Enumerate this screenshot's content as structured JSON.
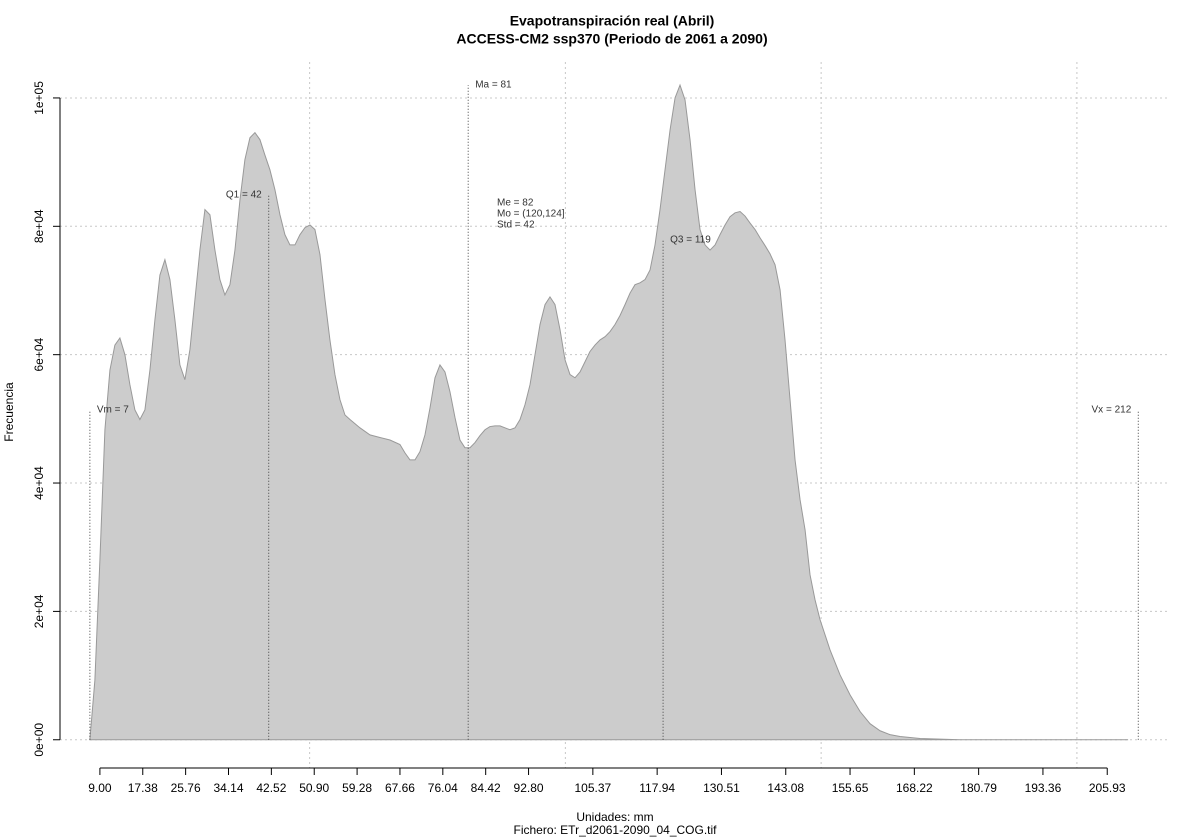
{
  "chart_data": {
    "type": "area",
    "title": "Evapotranspiración real (Abril)",
    "subtitle": "ACCESS-CM2 ssp370 (Periodo de 2061 a 2090)",
    "x_label": "Unidades: mm",
    "caption": "Fichero: ETr_d2061-2090_04_COG.tif",
    "y_label": "Frecuencia",
    "color": "#cccccc",
    "line_color": "#999999",
    "grid": true,
    "xlim": [
      1.2,
      218.2
    ],
    "ylim": [
      -4400,
      105600
    ],
    "xgrid": [
      50,
      100,
      150,
      200
    ],
    "xticks": [
      {
        "value": 9,
        "label": "9.00"
      },
      17.38,
      25.76,
      34.14,
      42.52,
      {
        "value": 50.9,
        "label": "50.90"
      },
      59.28,
      67.66,
      76.04,
      84.42,
      {
        "value": 92.8,
        "label": "92.80"
      },
      105.37,
      117.94,
      130.51,
      143.08,
      155.65,
      168.22,
      180.79,
      193.36,
      205.93
    ],
    "yticks": [
      {
        "value": 0,
        "label": "0e+00"
      },
      {
        "value": 20000,
        "label": "2e+04"
      },
      {
        "value": 40000,
        "label": "4e+04"
      },
      {
        "value": 60000,
        "label": "6e+04"
      },
      {
        "value": 80000,
        "label": "8e+04"
      },
      {
        "value": 100000,
        "label": "1e+05"
      }
    ],
    "x": [
      7.04,
      8.02,
      9.0,
      9.98,
      10.96,
      11.93,
      12.91,
      13.89,
      14.87,
      15.84,
      16.82,
      17.8,
      18.78,
      19.75,
      20.73,
      21.71,
      22.69,
      23.67,
      24.64,
      25.62,
      26.6,
      27.58,
      28.55,
      29.53,
      30.51,
      31.49,
      32.46,
      33.44,
      34.42,
      35.4,
      36.38,
      37.35,
      38.33,
      39.31,
      40.29,
      41.26,
      42.24,
      43.22,
      44.2,
      45.17,
      46.15,
      47.13,
      48.11,
      49.09,
      50.06,
      51.04,
      52.02,
      53.0,
      53.97,
      54.95,
      55.93,
      56.91,
      57.89,
      59.84,
      61.8,
      63.75,
      65.71,
      67.66,
      68.64,
      69.62,
      70.6,
      71.57,
      72.55,
      73.53,
      74.51,
      75.48,
      76.46,
      77.44,
      78.42,
      79.39,
      80.37,
      81.35,
      82.33,
      83.31,
      84.28,
      85.26,
      86.24,
      87.22,
      88.19,
      89.17,
      90.15,
      91.13,
      92.1,
      93.08,
      94.06,
      95.04,
      96.02,
      96.99,
      97.97,
      98.95,
      99.93,
      100.9,
      101.88,
      102.86,
      103.84,
      104.81,
      105.79,
      106.77,
      107.75,
      108.73,
      109.7,
      110.68,
      111.66,
      112.64,
      113.61,
      114.59,
      115.57,
      116.55,
      117.52,
      118.5,
      119.48,
      120.46,
      121.44,
      122.41,
      123.39,
      124.37,
      125.35,
      126.32,
      127.3,
      128.28,
      129.26,
      130.23,
      131.21,
      132.19,
      133.17,
      134.15,
      135.12,
      136.1,
      137.08,
      138.06,
      139.03,
      140.01,
      140.99,
      141.97,
      142.94,
      143.92,
      144.9,
      145.88,
      146.86,
      147.83,
      148.81,
      149.79,
      151.74,
      153.7,
      155.65,
      157.61,
      159.56,
      161.52,
      163.47,
      165.43,
      169.34,
      177.16,
      184.99,
      210.01
    ],
    "values": [
      0,
      9300,
      28000,
      48300,
      57600,
      61500,
      62600,
      60000,
      55300,
      51400,
      49900,
      51400,
      57600,
      65400,
      72400,
      74800,
      71700,
      65400,
      58400,
      56100,
      60800,
      68600,
      76300,
      82600,
      81800,
      76300,
      71700,
      69300,
      70900,
      76300,
      84100,
      90400,
      93800,
      94600,
      93500,
      91100,
      88800,
      85700,
      81800,
      78700,
      77100,
      77100,
      78700,
      79800,
      80200,
      79500,
      75600,
      68600,
      62300,
      56900,
      53000,
      50600,
      49900,
      48600,
      47500,
      47100,
      46700,
      46000,
      44700,
      43600,
      43600,
      44900,
      47500,
      51700,
      56400,
      58400,
      57300,
      54200,
      50200,
      46700,
      45500,
      45500,
      46300,
      47400,
      48300,
      48800,
      48900,
      48900,
      48600,
      48300,
      48600,
      49900,
      52200,
      55300,
      60000,
      64700,
      67800,
      69000,
      67800,
      63900,
      59200,
      56900,
      56400,
      57300,
      58900,
      60500,
      61500,
      62300,
      62800,
      63600,
      64700,
      66100,
      67800,
      69600,
      70900,
      71200,
      71700,
      73200,
      77100,
      82600,
      88800,
      95000,
      100000,
      102000,
      99700,
      93500,
      85700,
      79500,
      77100,
      76300,
      77100,
      78700,
      80200,
      81500,
      82100,
      82300,
      81600,
      80500,
      79500,
      78200,
      77000,
      75700,
      74000,
      70100,
      62300,
      53000,
      43600,
      37400,
      32700,
      25700,
      21800,
      18700,
      14000,
      10100,
      7000,
      4400,
      2500,
      1400,
      800,
      500,
      200,
      0,
      0,
      0
    ],
    "annotations": [
      {
        "label": "Vm = 7",
        "x": 7.04,
        "y": 51400,
        "side": "right"
      },
      {
        "label": "Q1 = 42",
        "x": 42.0,
        "y": 84900,
        "side": "left"
      },
      {
        "label": "Ma = 81",
        "x": 81.0,
        "y": 102000,
        "side": "right"
      },
      {
        "label": "Q3 = 119",
        "x": 119.1,
        "y": 77900,
        "side": "right"
      },
      {
        "label": "Vx = 212",
        "x": 212.0,
        "y": 51400,
        "side": "left"
      }
    ],
    "stats": [
      "Me = 82",
      "Mo = (120,124]",
      "Std = 42"
    ]
  }
}
